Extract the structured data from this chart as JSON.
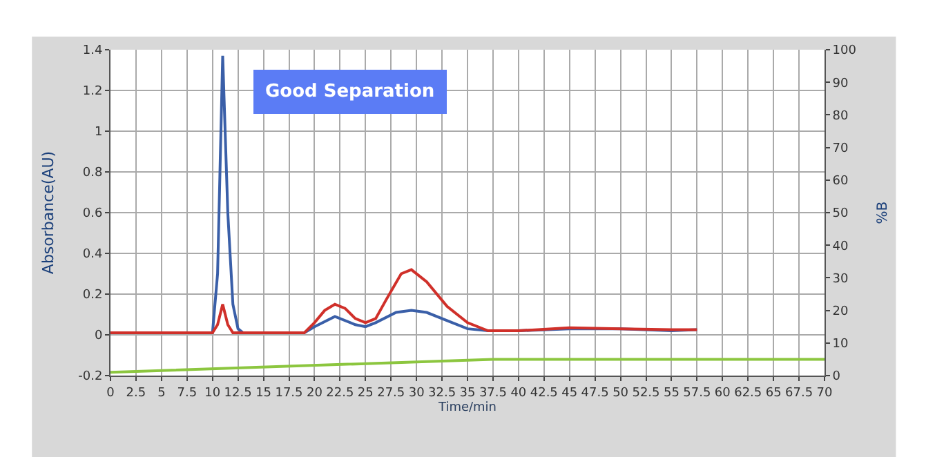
{
  "chart_data": {
    "type": "line",
    "xlabel": "Time/min",
    "ylabel": "Absorbance(AU)",
    "y2label": "%B",
    "annotations": [
      "Good Separation"
    ],
    "xlim": [
      0,
      70
    ],
    "xticks": [
      0,
      2.5,
      5,
      7.5,
      10,
      12.5,
      15,
      17.5,
      20,
      22.5,
      25,
      27.5,
      30,
      32.5,
      35,
      37.5,
      40,
      42.5,
      45,
      47.5,
      50,
      52.5,
      55,
      57.5,
      60,
      62.5,
      65,
      67.5,
      70
    ],
    "ylim": [
      -0.2,
      1.4
    ],
    "yticks": [
      -0.2,
      0,
      0.2,
      0.4,
      0.6,
      0.8,
      1,
      1.2,
      1.4
    ],
    "y2lim": [
      0,
      100
    ],
    "y2ticks": [
      0,
      10,
      20,
      30,
      40,
      50,
      60,
      70,
      80,
      90,
      100
    ],
    "grid": true,
    "series": [
      {
        "color": "#3a5fa8",
        "x": [
          0,
          10,
          10.5,
          11,
          11.5,
          12,
          12.5,
          13,
          19,
          20,
          22,
          24,
          25,
          26,
          28,
          29.5,
          31,
          33,
          35,
          37,
          40,
          45,
          50,
          55,
          57.5
        ],
        "values": [
          0.01,
          0.01,
          0.3,
          1.37,
          0.6,
          0.15,
          0.03,
          0.01,
          0.01,
          0.04,
          0.09,
          0.05,
          0.04,
          0.06,
          0.11,
          0.12,
          0.11,
          0.07,
          0.03,
          0.02,
          0.02,
          0.03,
          0.03,
          0.02,
          0.025
        ]
      },
      {
        "color": "#d0302a",
        "x": [
          0,
          10,
          10.5,
          11,
          11.5,
          12,
          19,
          20,
          21,
          22,
          23,
          24,
          25,
          26,
          27,
          28.5,
          29.5,
          31,
          33,
          35,
          37,
          40,
          45,
          50,
          55,
          57.5
        ],
        "values": [
          0.01,
          0.01,
          0.05,
          0.15,
          0.05,
          0.01,
          0.01,
          0.06,
          0.12,
          0.15,
          0.13,
          0.08,
          0.06,
          0.08,
          0.17,
          0.3,
          0.32,
          0.26,
          0.14,
          0.06,
          0.02,
          0.02,
          0.035,
          0.03,
          0.025,
          0.025
        ]
      },
      {
        "color": "#8cc63f",
        "axis": "y2",
        "x": [
          0,
          37.5,
          70
        ],
        "values": [
          1,
          5,
          5
        ]
      }
    ]
  }
}
